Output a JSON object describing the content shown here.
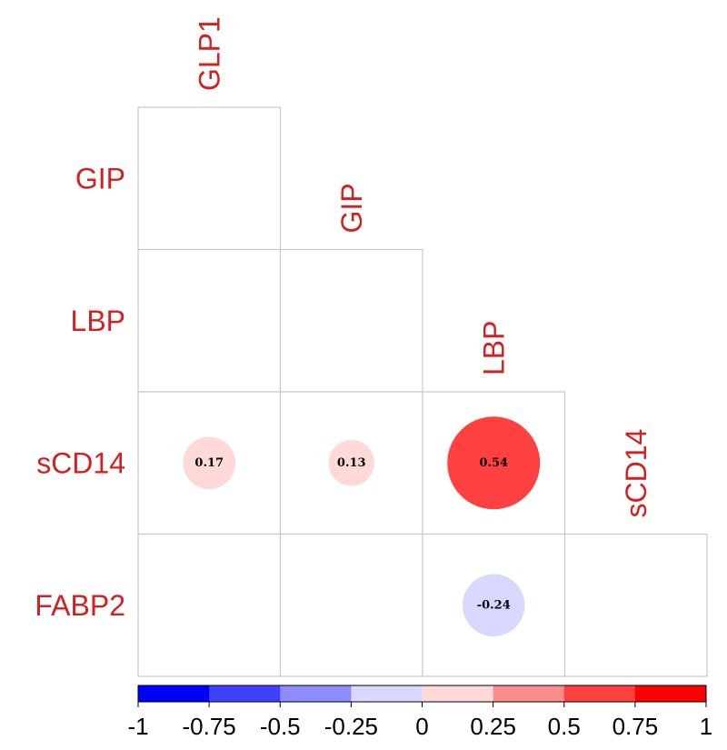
{
  "chart_data": {
    "type": "correlation-matrix",
    "layout": "lower-triangle",
    "variables": [
      "GLP1",
      "GIP",
      "LBP",
      "sCD14",
      "FABP2"
    ],
    "row_labels": [
      "GIP",
      "LBP",
      "sCD14",
      "FABP2"
    ],
    "col_labels": [
      "GLP1",
      "GIP",
      "LBP",
      "sCD14"
    ],
    "cells": [
      {
        "row": "sCD14",
        "col": "GLP1",
        "value": 0.17,
        "label": "0.17"
      },
      {
        "row": "sCD14",
        "col": "GIP",
        "value": 0.13,
        "label": "0.13"
      },
      {
        "row": "sCD14",
        "col": "LBP",
        "value": 0.54,
        "label": "0.54"
      },
      {
        "row": "FABP2",
        "col": "LBP",
        "value": -0.24,
        "label": "-0.24"
      }
    ],
    "colorbar": {
      "range": [
        -1,
        1
      ],
      "ticks": [
        "-1",
        "-0.75",
        "-0.5",
        "-0.25",
        "0",
        "0.25",
        "0.5",
        "0.75",
        "1"
      ],
      "bins": [
        "#0000ff",
        "#4040ff",
        "#8c8cff",
        "#d8d8ff",
        "#ffd8d8",
        "#ff8c8c",
        "#ff4040",
        "#ff0000"
      ]
    },
    "colors": {
      "label": "#d32020",
      "grid": "#c8c8c8",
      "positive": "#ff0000",
      "negative": "#0000ff"
    }
  }
}
